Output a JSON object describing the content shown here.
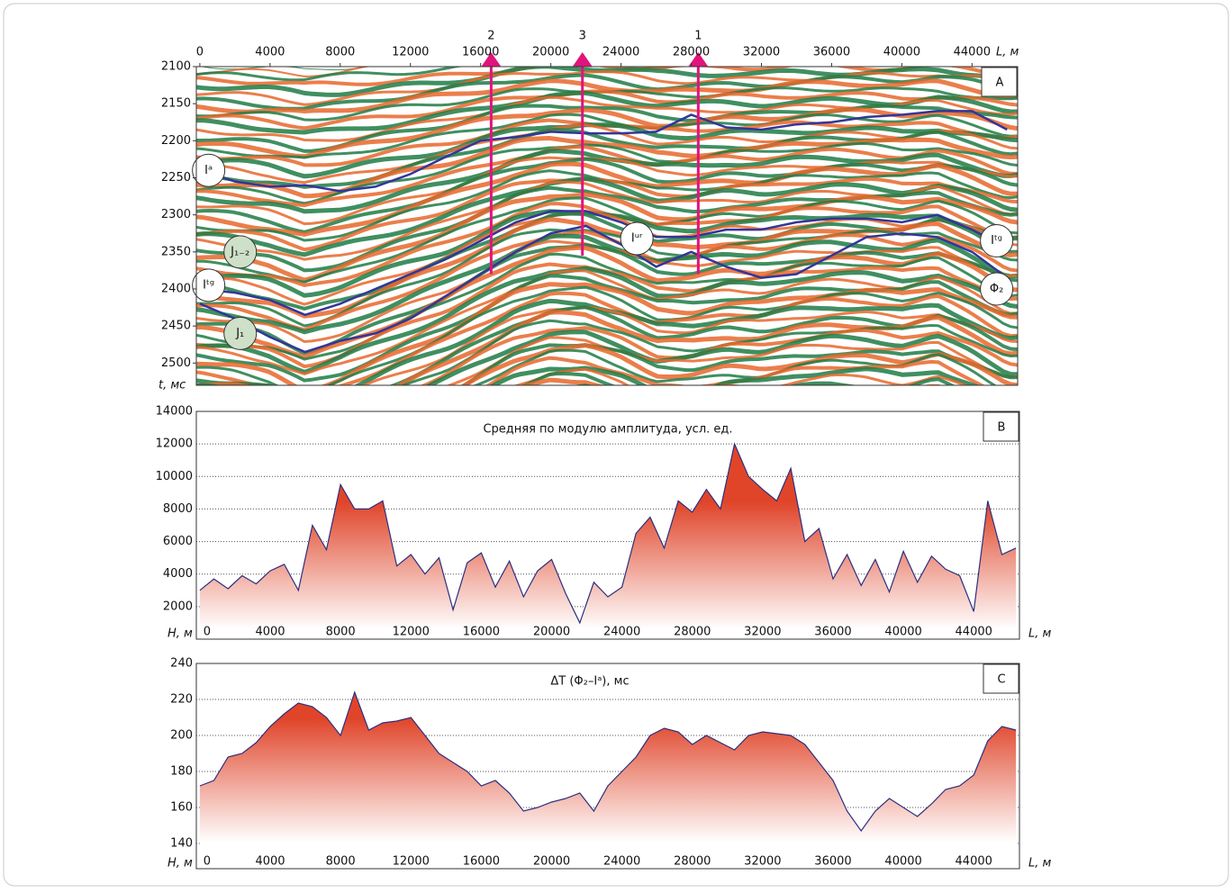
{
  "chart_data": [
    {
      "type": "seismic",
      "panel_label": "A",
      "xlabel": "L, м",
      "ylabel": "t, мс",
      "xlim": [
        -200,
        46600
      ],
      "ylim": [
        2100,
        2530
      ],
      "reverse_y": true,
      "xticks": [
        0,
        4000,
        8000,
        12000,
        16000,
        20000,
        24000,
        28000,
        32000,
        36000,
        40000,
        44000
      ],
      "yticks": [
        2100,
        2150,
        2200,
        2250,
        2300,
        2350,
        2400,
        2450,
        2500
      ],
      "horizon_color": "#33359a",
      "horizons": [
        {
          "x": [
            0,
            2000,
            4000,
            6000,
            8000,
            10000,
            12000,
            14000,
            16000,
            18000,
            20000,
            22000,
            24000,
            26000,
            28000,
            30000,
            32000,
            34000,
            36000,
            38000,
            40000,
            42000,
            44000,
            46000
          ],
          "values": [
            2240,
            2255,
            2262,
            2260,
            2268,
            2262,
            2245,
            2222,
            2200,
            2195,
            2188,
            2190,
            2190,
            2188,
            2165,
            2182,
            2185,
            2178,
            2175,
            2168,
            2165,
            2160,
            2160,
            2185
          ]
        },
        {
          "x": [
            0,
            2000,
            4000,
            6000,
            8000,
            10000,
            12000,
            14000,
            16000,
            18000,
            20000,
            22000,
            24000,
            26000,
            28000,
            30000,
            32000,
            34000,
            36000,
            38000,
            40000,
            42000,
            44000,
            46000
          ],
          "values": [
            2400,
            2405,
            2415,
            2435,
            2420,
            2400,
            2380,
            2360,
            2335,
            2310,
            2295,
            2295,
            2310,
            2330,
            2330,
            2320,
            2320,
            2310,
            2305,
            2305,
            2310,
            2300,
            2320,
            2345
          ]
        },
        {
          "x": [
            0,
            2000,
            4000,
            6000,
            8000,
            10000,
            12000,
            14000,
            16000,
            18000,
            20000,
            22000,
            24000,
            26000,
            28000,
            30000,
            32000,
            34000,
            36000,
            38000,
            40000,
            42000,
            44000,
            46000
          ],
          "values": [
            2420,
            2440,
            2465,
            2485,
            2470,
            2460,
            2440,
            2410,
            2380,
            2350,
            2325,
            2315,
            2340,
            2370,
            2350,
            2370,
            2385,
            2380,
            2355,
            2330,
            2325,
            2330,
            2350,
            2385
          ]
        }
      ],
      "wells": [
        {
          "label": "2",
          "x": 16600,
          "bottom": 2380
        },
        {
          "label": "3",
          "x": 21800,
          "bottom": 2355
        },
        {
          "label": "1",
          "x": 28400,
          "bottom": 2380
        }
      ],
      "well_color": "#e0147c",
      "annotations": [
        {
          "text": "Iᵃ",
          "x": 500,
          "t": 2240,
          "color": "#ffffff"
        },
        {
          "text": "Iᵗᵍ",
          "x": 500,
          "t": 2395,
          "color": "#ffffff"
        },
        {
          "text": "J₁₋₂",
          "x": 2300,
          "t": 2350,
          "color": "#cfe0c8"
        },
        {
          "text": "J₁",
          "x": 2300,
          "t": 2460,
          "color": "#cfe0c8"
        },
        {
          "text": "Iᵘʳ",
          "x": 24900,
          "t": 2332,
          "color": "#ffffff"
        },
        {
          "text": "Iᵗᵍ",
          "x": 45400,
          "t": 2335,
          "color": "#ffffff"
        },
        {
          "text": "Φ₂",
          "x": 45400,
          "t": 2400,
          "color": "#ffffff"
        }
      ]
    },
    {
      "type": "area",
      "panel_label": "B",
      "title": "Средняя по модулю амплитуда, усл. ед.",
      "xlabel": "L, м",
      "ylabel": "H, м",
      "xlim": [
        -200,
        46600
      ],
      "ylim": [
        0,
        14000
      ],
      "grid": true,
      "color": "#2b2f7e",
      "fill": "#e0452a",
      "xticks": [
        0,
        4000,
        8000,
        12000,
        16000,
        20000,
        24000,
        28000,
        32000,
        36000,
        40000,
        44000
      ],
      "yticks": [
        2000,
        4000,
        6000,
        8000,
        10000,
        12000,
        14000
      ],
      "x": [
        0,
        800,
        1600,
        2400,
        3200,
        4000,
        4800,
        5600,
        6400,
        7200,
        8000,
        8800,
        9600,
        10400,
        11200,
        12000,
        12800,
        13600,
        14400,
        15200,
        16000,
        16800,
        17600,
        18400,
        19200,
        20000,
        20800,
        21600,
        22400,
        23200,
        24000,
        24800,
        25600,
        26400,
        27200,
        28000,
        28800,
        29600,
        30400,
        31200,
        32000,
        32800,
        33600,
        34400,
        35200,
        36000,
        36800,
        37600,
        38400,
        39200,
        40000,
        40800,
        41600,
        42400,
        43200,
        44000,
        44800,
        45600,
        46400
      ],
      "values": [
        3000,
        3700,
        3100,
        3900,
        3400,
        4200,
        4600,
        3000,
        7000,
        5500,
        9500,
        8000,
        8000,
        8500,
        4500,
        5200,
        4000,
        5000,
        1800,
        4700,
        5300,
        3200,
        4800,
        2600,
        4200,
        4900,
        2800,
        1000,
        3500,
        2600,
        3200,
        6500,
        7500,
        5600,
        8500,
        7800,
        9200,
        8000,
        12000,
        10000,
        9200,
        8500,
        10500,
        6000,
        6800,
        3700,
        5200,
        3300,
        4900,
        2900,
        5400,
        3500,
        5100,
        4300,
        3900,
        1700,
        8500,
        5200,
        5600
      ]
    },
    {
      "type": "area",
      "panel_label": "C",
      "title": "ΔT (Φ₂–Iᵃ), мс",
      "xlabel": "L, м",
      "ylabel": "H, м",
      "xlim": [
        -200,
        46600
      ],
      "ylim": [
        126,
        240
      ],
      "grid": true,
      "color": "#2b2f7e",
      "fill": "#e0452a",
      "xticks": [
        0,
        4000,
        8000,
        12000,
        16000,
        20000,
        24000,
        28000,
        32000,
        36000,
        40000,
        44000
      ],
      "yticks": [
        140,
        160,
        180,
        200,
        220,
        240
      ],
      "x": [
        0,
        800,
        1600,
        2400,
        3200,
        4000,
        4800,
        5600,
        6400,
        7200,
        8000,
        8800,
        9600,
        10400,
        11200,
        12000,
        12800,
        13600,
        14400,
        15200,
        16000,
        16800,
        17600,
        18400,
        19200,
        20000,
        20800,
        21600,
        22400,
        23200,
        24000,
        24800,
        25600,
        26400,
        27200,
        28000,
        28800,
        29600,
        30400,
        31200,
        32000,
        32800,
        33600,
        34400,
        35200,
        36000,
        36800,
        37600,
        38400,
        39200,
        40000,
        40800,
        41600,
        42400,
        43200,
        44000,
        44800,
        45600,
        46400
      ],
      "values": [
        172,
        175,
        188,
        190,
        196,
        205,
        212,
        218,
        216,
        210,
        200,
        224,
        203,
        207,
        208,
        210,
        200,
        190,
        185,
        180,
        172,
        175,
        168,
        158,
        160,
        163,
        165,
        168,
        158,
        172,
        180,
        188,
        200,
        204,
        202,
        195,
        200,
        196,
        192,
        200,
        202,
        201,
        200,
        195,
        185,
        175,
        158,
        147,
        158,
        165,
        160,
        155,
        162,
        170,
        172,
        178,
        197,
        205,
        203
      ]
    }
  ]
}
